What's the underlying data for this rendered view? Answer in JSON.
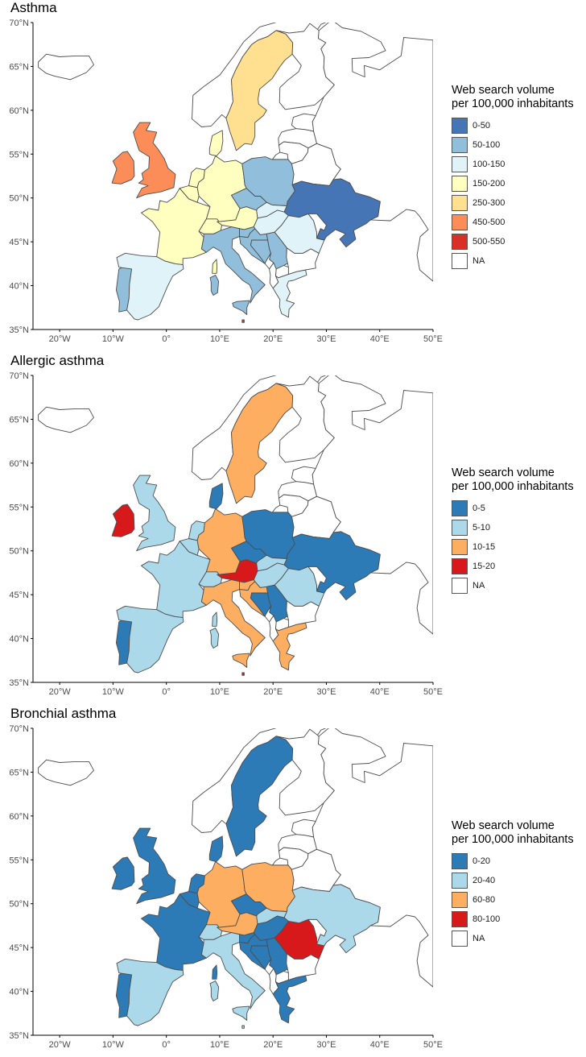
{
  "axes": {
    "lat_labels": [
      "70°N",
      "65°N",
      "60°N",
      "55°N",
      "50°N",
      "45°N",
      "40°N",
      "35°N"
    ],
    "lon_labels": [
      "20°W",
      "10°W",
      "0°",
      "10°E",
      "20°E",
      "30°E",
      "40°E",
      "50°E"
    ],
    "lat_values": [
      70,
      65,
      60,
      55,
      50,
      45,
      40,
      35
    ],
    "lon_values": [
      -20,
      -10,
      0,
      10,
      20,
      30,
      40,
      50
    ],
    "xlim": [
      -25,
      50
    ],
    "ylim": [
      35,
      70
    ]
  },
  "legend_title_line1": "Web search volume",
  "legend_title_line2": "per 100,000 inhabitants",
  "panels": [
    {
      "title": "Asthma",
      "legend": [
        {
          "label": "0-50",
          "color": "#4575b4"
        },
        {
          "label": "50-100",
          "color": "#91bfdb"
        },
        {
          "label": "100-150",
          "color": "#e0f3f8"
        },
        {
          "label": "150-200",
          "color": "#ffffbf"
        },
        {
          "label": "250-300",
          "color": "#fee090"
        },
        {
          "label": "450-500",
          "color": "#fc8d59"
        },
        {
          "label": "500-550",
          "color": "#d73027"
        },
        {
          "label": "NA",
          "color": "#ffffff"
        }
      ],
      "countries": {
        "IS": "NA",
        "IE": "450-500",
        "GB": "450-500",
        "PT": "50-100",
        "ES": "100-150",
        "FR": "150-200",
        "BE": "150-200",
        "NL": "150-200",
        "DE": "150-200",
        "CH": "150-200",
        "AT": "150-200",
        "IT": "50-100",
        "DK": "150-200",
        "NO": "NA",
        "SE": "250-300",
        "FI": "NA",
        "PL": "50-100",
        "CZ": "50-100",
        "SK": "100-150",
        "HU": "100-150",
        "SI": "50-100",
        "HR": "50-100",
        "BA": "50-100",
        "RS": "50-100",
        "RO": "100-150",
        "BG": "NA",
        "GR": "100-150",
        "UA": "0-50",
        "BY": "NA",
        "LT": "NA",
        "LV": "NA",
        "EE": "NA",
        "RU": "NA",
        "MT": "500-550",
        "CORS": "150-200",
        "SARD": "50-100",
        "SIC": "50-100",
        "AL": "NA",
        "MK": "NA",
        "MD": "NA",
        "ME": "NA"
      }
    },
    {
      "title": "Allergic asthma",
      "legend": [
        {
          "label": "0-5",
          "color": "#2c7bb6"
        },
        {
          "label": "5-10",
          "color": "#abd9e9"
        },
        {
          "label": "10-15",
          "color": "#fdae61"
        },
        {
          "label": "15-20",
          "color": "#d7191c"
        },
        {
          "label": "NA",
          "color": "#ffffff"
        }
      ],
      "countries": {
        "IS": "NA",
        "IE": "15-20",
        "GB": "5-10",
        "PT": "0-5",
        "ES": "5-10",
        "FR": "5-10",
        "BE": "5-10",
        "NL": "5-10",
        "DE": "10-15",
        "CH": "5-10",
        "AT": "15-20",
        "IT": "10-15",
        "DK": "0-5",
        "NO": "NA",
        "SE": "10-15",
        "FI": "NA",
        "PL": "0-5",
        "CZ": "0-5",
        "SK": "5-10",
        "HU": "5-10",
        "SI": "10-15",
        "HR": "10-15",
        "BA": "0-5",
        "RS": "0-5",
        "RO": "5-10",
        "BG": "NA",
        "GR": "10-15",
        "UA": "0-5",
        "BY": "NA",
        "LT": "NA",
        "LV": "NA",
        "EE": "NA",
        "RU": "NA",
        "MT": "15-20",
        "CORS": "5-10",
        "SARD": "5-10",
        "SIC": "10-15",
        "AL": "NA",
        "MK": "NA",
        "MD": "NA",
        "ME": "NA"
      }
    },
    {
      "title": "Bronchial asthma",
      "legend": [
        {
          "label": "0-20",
          "color": "#2c7bb6"
        },
        {
          "label": "20-40",
          "color": "#abd9e9"
        },
        {
          "label": "60-80",
          "color": "#fdae61"
        },
        {
          "label": "80-100",
          "color": "#d7191c"
        },
        {
          "label": "NA",
          "color": "#ffffff"
        }
      ],
      "countries": {
        "IS": "NA",
        "IE": "0-20",
        "GB": "0-20",
        "PT": "0-20",
        "ES": "20-40",
        "FR": "0-20",
        "BE": "0-20",
        "NL": "0-20",
        "DE": "60-80",
        "CH": "20-40",
        "AT": "60-80",
        "IT": "20-40",
        "DK": "0-20",
        "NO": "NA",
        "SE": "0-20",
        "FI": "NA",
        "PL": "60-80",
        "CZ": "0-20",
        "SK": "20-40",
        "HU": "0-20",
        "SI": "0-20",
        "HR": "0-20",
        "BA": "0-20",
        "RS": "0-20",
        "RO": "80-100",
        "BG": "NA",
        "GR": "0-20",
        "UA": "20-40",
        "BY": "NA",
        "LT": "NA",
        "LV": "NA",
        "EE": "NA",
        "RU": "NA",
        "MT": "20-40",
        "CORS": "0-20",
        "SARD": "20-40",
        "SIC": "20-40",
        "AL": "NA",
        "MK": "NA",
        "MD": "NA",
        "ME": "NA"
      }
    }
  ]
}
